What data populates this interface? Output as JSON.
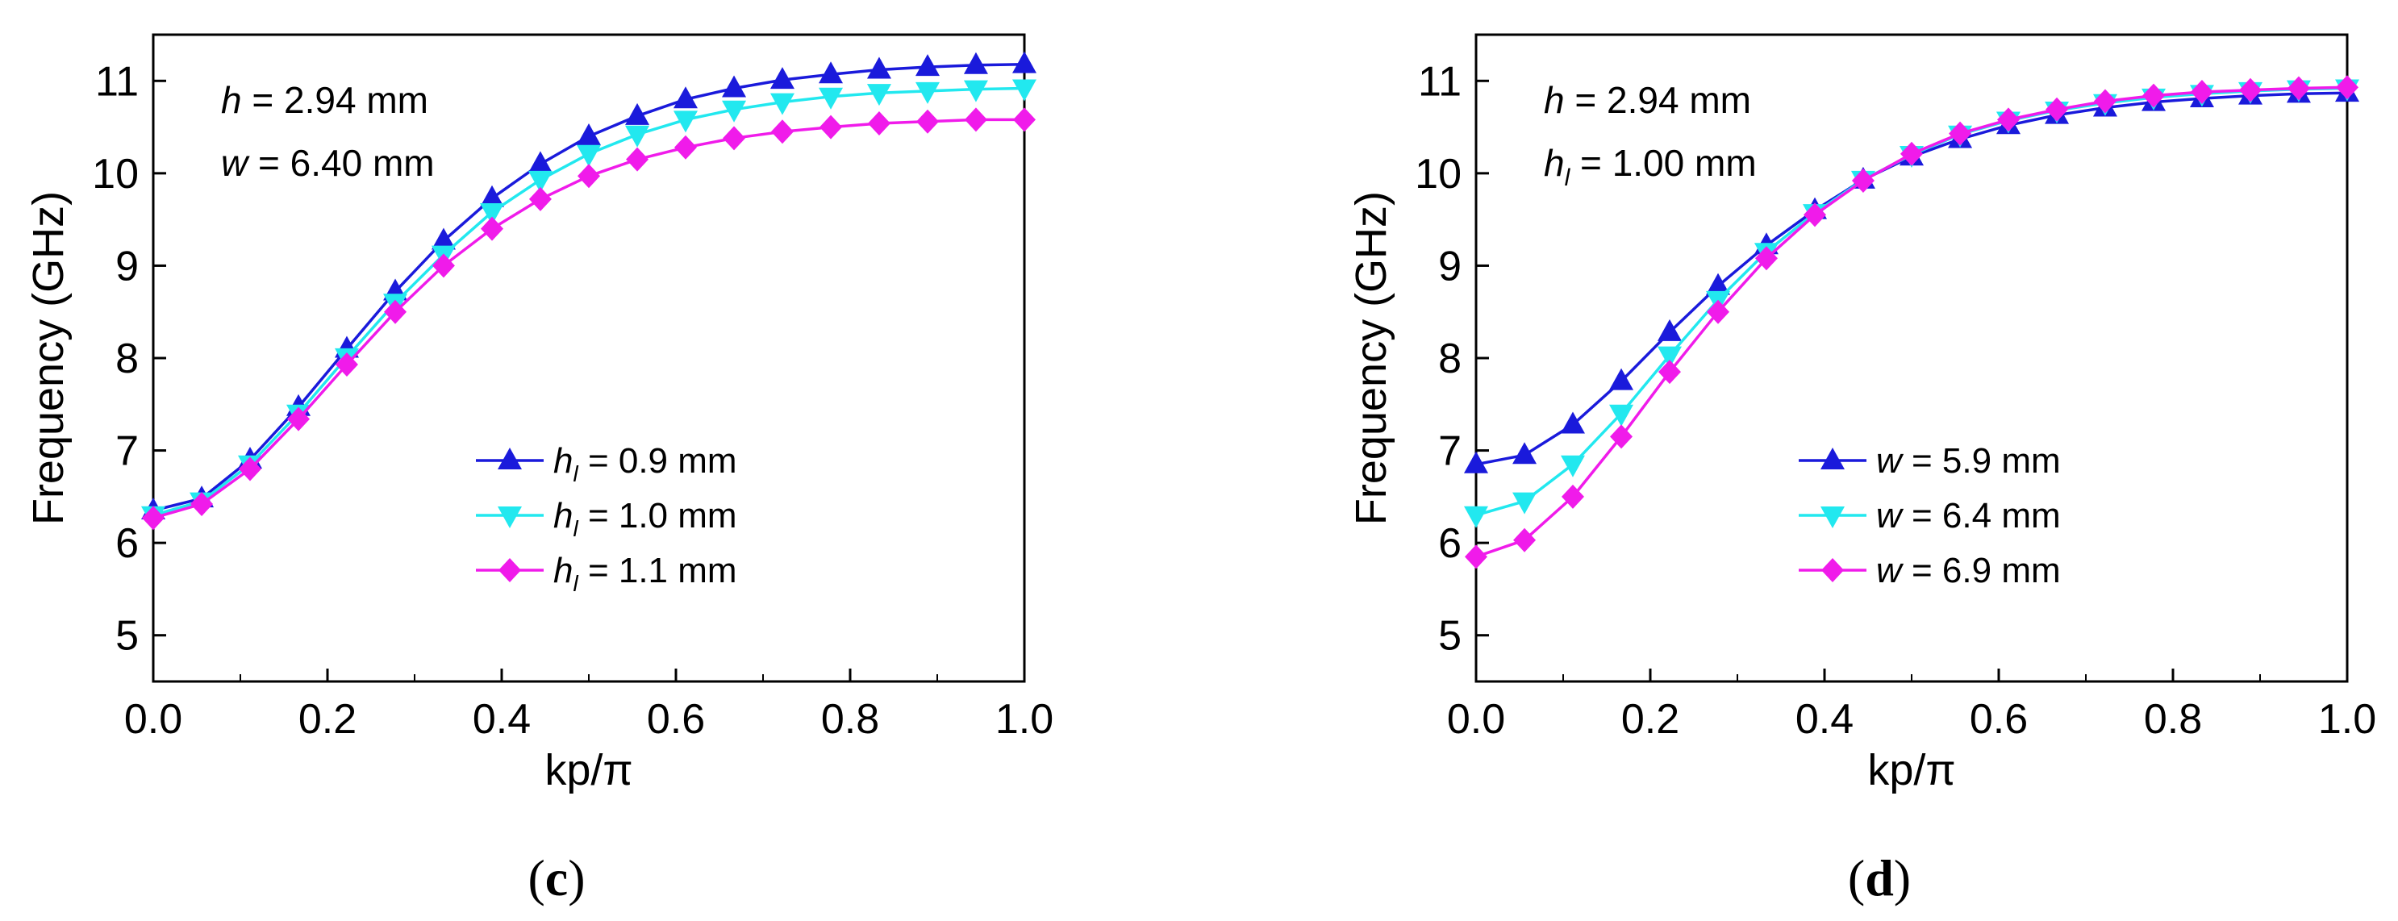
{
  "chart_data": [
    {
      "type": "line",
      "panel_label": {
        "open": "(",
        "letter": "c",
        "close": ")"
      },
      "xlabel": "kp/π",
      "ylabel": "Frequency (GHz)",
      "xlim": [
        0.0,
        1.0
      ],
      "ylim": [
        4.5,
        11.5
      ],
      "xticks": [
        "0.0",
        "0.2",
        "0.4",
        "0.6",
        "0.8",
        "1.0"
      ],
      "yticks": [
        "5",
        "6",
        "7",
        "8",
        "9",
        "10",
        "11"
      ],
      "annotations": [
        {
          "var": "h",
          "sub": "",
          "text": " = 2.94 mm"
        },
        {
          "var": "w",
          "sub": "",
          "text": " = 6.40 mm"
        }
      ],
      "legend_position": "lower-right",
      "x": [
        0.0,
        0.0556,
        0.1111,
        0.1667,
        0.2222,
        0.2778,
        0.3333,
        0.3889,
        0.4444,
        0.5,
        0.5556,
        0.6111,
        0.6667,
        0.7222,
        0.7778,
        0.8333,
        0.8889,
        0.9444,
        1.0
      ],
      "series": [
        {
          "var": "h",
          "sub": "l",
          "label": " = 0.9 mm",
          "color": "#1a1adb",
          "marker": "triangle-up",
          "values": [
            6.35,
            6.48,
            6.9,
            7.47,
            8.1,
            8.72,
            9.27,
            9.73,
            10.1,
            10.4,
            10.62,
            10.8,
            10.92,
            11.01,
            11.07,
            11.12,
            11.15,
            11.17,
            11.18
          ]
        },
        {
          "var": "h",
          "sub": "l",
          "label": " = 1.0 mm",
          "color": "#22e8ef",
          "marker": "triangle-down",
          "values": [
            6.3,
            6.45,
            6.85,
            7.4,
            8.01,
            8.6,
            9.12,
            9.58,
            9.93,
            10.21,
            10.42,
            10.58,
            10.69,
            10.77,
            10.83,
            10.87,
            10.89,
            10.91,
            10.92
          ]
        },
        {
          "var": "h",
          "sub": "l",
          "label": " = 1.1 mm",
          "color": "#f01bea",
          "marker": "diamond",
          "values": [
            6.27,
            6.42,
            6.8,
            7.34,
            7.93,
            8.5,
            9.0,
            9.4,
            9.72,
            9.97,
            10.15,
            10.28,
            10.38,
            10.45,
            10.5,
            10.54,
            10.56,
            10.58,
            10.58
          ]
        }
      ]
    },
    {
      "type": "line",
      "panel_label": {
        "open": "(",
        "letter": "d",
        "close": ")"
      },
      "xlabel": "kp/π",
      "ylabel": "Frequency (GHz)",
      "xlim": [
        0.0,
        1.0
      ],
      "ylim": [
        4.5,
        11.5
      ],
      "xticks": [
        "0.0",
        "0.2",
        "0.4",
        "0.6",
        "0.8",
        "1.0"
      ],
      "yticks": [
        "5",
        "6",
        "7",
        "8",
        "9",
        "10",
        "11"
      ],
      "annotations": [
        {
          "var": "h",
          "sub": "",
          "text": " = 2.94 mm"
        },
        {
          "var": "h",
          "sub": "l",
          "text": " = 1.00 mm"
        }
      ],
      "legend_position": "center",
      "x": [
        0.0,
        0.0556,
        0.1111,
        0.1667,
        0.2222,
        0.2778,
        0.3333,
        0.3889,
        0.4444,
        0.5,
        0.5556,
        0.6111,
        0.6667,
        0.7222,
        0.7778,
        0.8333,
        0.8889,
        0.9444,
        1.0
      ],
      "series": [
        {
          "var": "w",
          "sub": "",
          "label": " = 5.9 mm",
          "color": "#1a1adb",
          "marker": "triangle-up",
          "values": [
            6.85,
            6.95,
            7.28,
            7.75,
            8.28,
            8.78,
            9.22,
            9.6,
            9.93,
            10.18,
            10.37,
            10.52,
            10.63,
            10.71,
            10.77,
            10.81,
            10.84,
            10.86,
            10.87
          ]
        },
        {
          "var": "w",
          "sub": "",
          "label": " = 6.4 mm",
          "color": "#22e8ef",
          "marker": "triangle-down",
          "values": [
            6.3,
            6.45,
            6.85,
            7.4,
            8.03,
            8.63,
            9.15,
            9.57,
            9.93,
            10.2,
            10.42,
            10.57,
            10.68,
            10.76,
            10.82,
            10.86,
            10.89,
            10.91,
            10.92
          ]
        },
        {
          "var": "w",
          "sub": "",
          "label": " = 6.9 mm",
          "color": "#f01bea",
          "marker": "diamond",
          "values": [
            5.85,
            6.03,
            6.5,
            7.15,
            7.85,
            8.5,
            9.08,
            9.55,
            9.92,
            10.21,
            10.43,
            10.58,
            10.69,
            10.78,
            10.84,
            10.88,
            10.9,
            10.92,
            10.93
          ]
        }
      ]
    }
  ]
}
